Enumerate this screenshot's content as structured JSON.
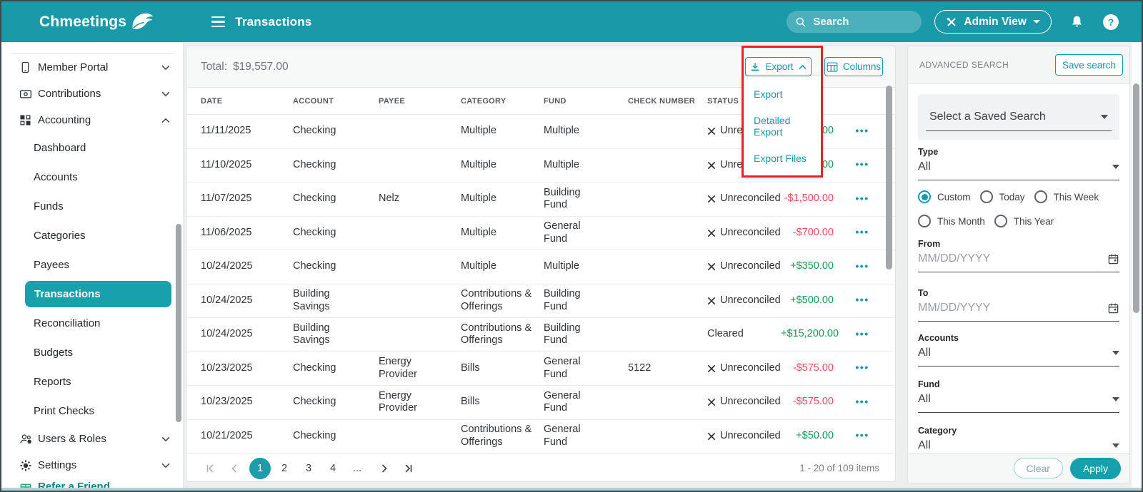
{
  "theme": {
    "topbar_teal": "#1a9aa8",
    "accent_teal": "#1699a8",
    "selected_teal": "#18a0ac",
    "positive_green": "#149a51",
    "negative_red": "#f74c5d",
    "annotation_red": "#ea2127"
  },
  "topbar": {
    "logo": "Chmeetings",
    "title": "Transactions",
    "search_placeholder": "Search",
    "admin_view_label": "Admin View"
  },
  "sidebar": {
    "items": [
      {
        "label": "Member Portal",
        "icon": "phone",
        "chevron": "down",
        "type": "top"
      },
      {
        "label": "Contributions",
        "icon": "payments",
        "chevron": "down",
        "type": "top"
      },
      {
        "label": "Accounting",
        "icon": "apps",
        "chevron": "up",
        "type": "top"
      },
      {
        "label": "Dashboard",
        "type": "sub"
      },
      {
        "label": "Accounts",
        "type": "sub"
      },
      {
        "label": "Funds",
        "type": "sub"
      },
      {
        "label": "Categories",
        "type": "sub"
      },
      {
        "label": "Payees",
        "type": "sub"
      },
      {
        "label": "Transactions",
        "type": "sub",
        "selected": true
      },
      {
        "label": "Reconciliation",
        "type": "sub"
      },
      {
        "label": "Budgets",
        "type": "sub"
      },
      {
        "label": "Reports",
        "type": "sub"
      },
      {
        "label": "Print Checks",
        "type": "sub"
      },
      {
        "label": "Users & Roles",
        "icon": "users",
        "chevron": "down",
        "type": "top"
      },
      {
        "label": "Settings",
        "icon": "gear",
        "chevron": "down",
        "type": "top"
      },
      {
        "label": "Refer a Friend",
        "icon": "gift",
        "type": "cut"
      }
    ]
  },
  "toolbar": {
    "total_label": "Total:",
    "total_value": "$19,557.00",
    "export_label": "Export",
    "columns_label": "Columns"
  },
  "export_menu": {
    "items": [
      "Export",
      "Detailed Export",
      "Export Files"
    ]
  },
  "table": {
    "headers": [
      {
        "key": "date",
        "label": "DATE"
      },
      {
        "key": "account",
        "label": "ACCOUNT"
      },
      {
        "key": "payee",
        "label": "PAYEE"
      },
      {
        "key": "category",
        "label": "CATEGORY"
      },
      {
        "key": "fund",
        "label": "FUND"
      },
      {
        "key": "check-number",
        "label": "CHECK NUMBER"
      },
      {
        "key": "status",
        "label": "STATUS"
      },
      {
        "key": "amount",
        "label": ""
      },
      {
        "key": "actions",
        "label": ""
      }
    ],
    "rows": [
      {
        "date": "11/11/2025",
        "account": "Checking",
        "payee": "",
        "category": "Multiple",
        "fund": "Multiple",
        "check_number": "",
        "status": "Unreconciled",
        "status_x": true,
        "amount": "00"
      },
      {
        "date": "11/10/2025",
        "account": "Checking",
        "payee": "",
        "category": "Multiple",
        "fund": "Multiple",
        "check_number": "",
        "status": "Unreconciled",
        "status_x": true,
        "amount": "00"
      },
      {
        "date": "11/07/2025",
        "account": "Checking",
        "payee": "Nelz",
        "category": "Multiple",
        "fund": "Building Fund",
        "check_number": "",
        "status": "Unreconciled",
        "status_x": true,
        "amount": "-$1,500.00"
      },
      {
        "date": "11/06/2025",
        "account": "Checking",
        "payee": "",
        "category": "Multiple",
        "fund": "General Fund",
        "check_number": "",
        "status": "Unreconciled",
        "status_x": true,
        "amount": "-$700.00"
      },
      {
        "date": "10/24/2025",
        "account": "Checking",
        "payee": "",
        "category": "Multiple",
        "fund": "Multiple",
        "check_number": "",
        "status": "Unreconciled",
        "status_x": true,
        "amount": "+$350.00"
      },
      {
        "date": "10/24/2025",
        "account": "Building Savings",
        "payee": "",
        "category": "Contributions & Offerings",
        "fund": "Building Fund",
        "check_number": "",
        "status": "Unreconciled",
        "status_x": true,
        "amount": "+$500.00"
      },
      {
        "date": "10/24/2025",
        "account": "Building Savings",
        "payee": "",
        "category": "Contributions & Offerings",
        "fund": "Building Fund",
        "check_number": "",
        "status": "Cleared",
        "status_x": false,
        "amount": "+$15,200.00"
      },
      {
        "date": "10/23/2025",
        "account": "Checking",
        "payee": "Energy Provider",
        "category": "Bills",
        "fund": "General Fund",
        "check_number": "5122",
        "status": "Unreconciled",
        "status_x": true,
        "amount": "-$575.00"
      },
      {
        "date": "10/23/2025",
        "account": "Checking",
        "payee": "Energy Provider",
        "category": "Bills",
        "fund": "General Fund",
        "check_number": "",
        "status": "Unreconciled",
        "status_x": true,
        "amount": "-$575.00"
      },
      {
        "date": "10/21/2025",
        "account": "Checking",
        "payee": "",
        "category": "Contributions & Offerings",
        "fund": "General Fund",
        "check_number": "",
        "status": "Unreconciled",
        "status_x": true,
        "amount": "+$50.00"
      }
    ]
  },
  "pagination": {
    "pages": [
      "1",
      "2",
      "3",
      "4",
      "..."
    ],
    "current": "1",
    "summary": "1 - 20 of 109 items"
  },
  "advanced_search": {
    "title": "ADVANCED SEARCH",
    "save_button": "Save search",
    "saved_search_placeholder": "Select a Saved Search",
    "type_label": "Type",
    "type_value": "All",
    "date_radios": [
      {
        "label": "Custom",
        "selected": true
      },
      {
        "label": "Today",
        "selected": false
      },
      {
        "label": "This Week",
        "selected": false
      },
      {
        "label": "This Month",
        "selected": false
      },
      {
        "label": "This Year",
        "selected": false
      }
    ],
    "from_label": "From",
    "from_placeholder": "MM/DD/YYYY",
    "to_label": "To",
    "to_placeholder": "MM/DD/YYYY",
    "accounts_label": "Accounts",
    "accounts_value": "All",
    "fund_label": "Fund",
    "fund_value": "All",
    "category_label": "Category",
    "category_value": "All",
    "clear_button": "Clear",
    "apply_button": "Apply"
  }
}
